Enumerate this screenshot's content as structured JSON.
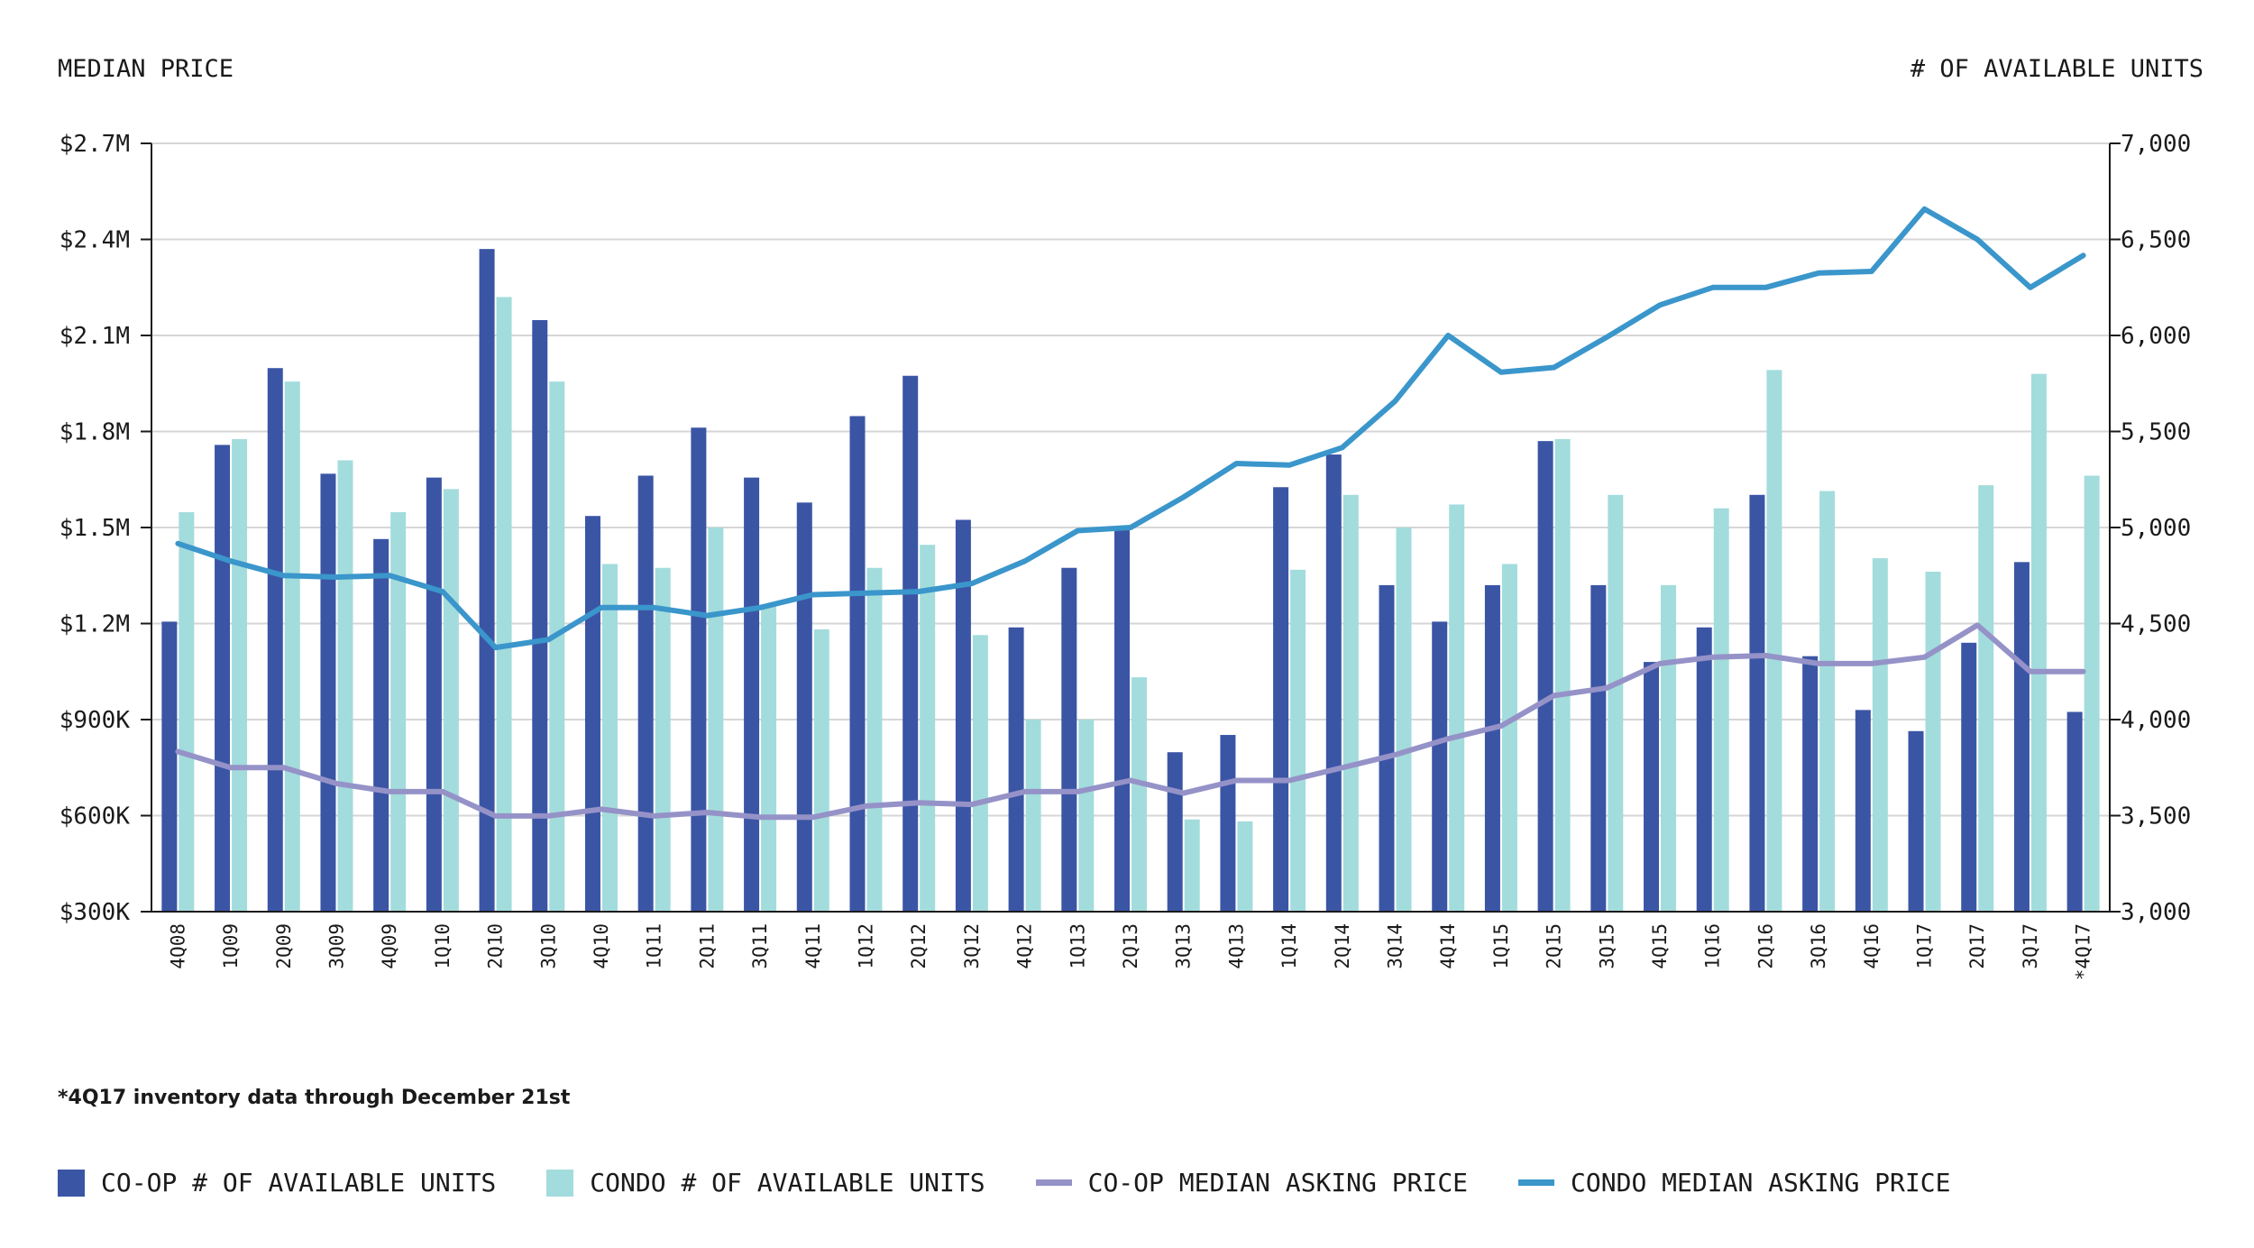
{
  "colors": {
    "coop_bar": "#3b55a5",
    "condo_bar": "#a3dcdc",
    "coop_line": "#9592c8",
    "condo_line": "#3a96cb"
  },
  "footnote": "*4Q17 inventory data through December 21st",
  "legend": [
    {
      "label": "CO-OP # OF AVAILABLE UNITS",
      "kind": "bar",
      "color": "#3b55a5"
    },
    {
      "label": "CONDO # OF AVAILABLE UNITS",
      "kind": "bar",
      "color": "#a3dcdc"
    },
    {
      "label": "CO-OP MEDIAN ASKING PRICE",
      "kind": "line",
      "color": "#9592c8"
    },
    {
      "label": "CONDO MEDIAN ASKING PRICE",
      "kind": "line",
      "color": "#3a96cb"
    }
  ],
  "chart_data": {
    "type": "bar",
    "left_axis_title": "MEDIAN PRICE",
    "right_axis_title": "# OF AVAILABLE UNITS",
    "left_ylim": [
      300000,
      2700000
    ],
    "right_ylim": [
      3000,
      7000
    ],
    "left_ticks": [
      "$300K",
      "$600K",
      "$900K",
      "$1.2M",
      "$1.5M",
      "$1.8M",
      "$2.1M",
      "$2.4M",
      "$2.7M"
    ],
    "right_ticks": [
      "3,000",
      "3,500",
      "4,000",
      "4,500",
      "5,000",
      "5,500",
      "6,000",
      "6,500",
      "7,000"
    ],
    "grid": true,
    "legend_position": "bottom",
    "categories": [
      "4Q08",
      "1Q09",
      "2Q09",
      "3Q09",
      "4Q09",
      "1Q10",
      "2Q10",
      "3Q10",
      "4Q10",
      "1Q11",
      "2Q11",
      "3Q11",
      "4Q11",
      "1Q12",
      "2Q12",
      "3Q12",
      "4Q12",
      "1Q13",
      "2Q13",
      "3Q13",
      "4Q13",
      "1Q14",
      "2Q14",
      "3Q14",
      "4Q14",
      "1Q15",
      "2Q15",
      "3Q15",
      "4Q15",
      "1Q16",
      "2Q16",
      "3Q16",
      "4Q16",
      "1Q17",
      "2Q17",
      "3Q17",
      "*4Q17"
    ],
    "series": [
      {
        "name": "CO-OP # OF AVAILABLE UNITS",
        "kind": "bar",
        "axis": "right",
        "values": [
          4510,
          5430,
          5830,
          5280,
          4940,
          5260,
          6450,
          6080,
          5060,
          5270,
          5520,
          5260,
          5130,
          5580,
          5790,
          5040,
          4480,
          4790,
          4990,
          3830,
          3920,
          5210,
          5380,
          4700,
          4510,
          4700,
          5450,
          4700,
          4300,
          4480,
          5170,
          4330,
          4050,
          3940,
          4400,
          4820,
          4040
        ]
      },
      {
        "name": "CONDO # OF AVAILABLE UNITS",
        "kind": "bar",
        "axis": "right",
        "values": [
          5080,
          5460,
          5760,
          5350,
          5080,
          5200,
          6200,
          5760,
          4810,
          4790,
          5000,
          4600,
          4470,
          4790,
          4910,
          4440,
          4000,
          4000,
          4220,
          3480,
          3470,
          4780,
          5170,
          5000,
          5120,
          4810,
          5460,
          5170,
          4700,
          5100,
          5820,
          5190,
          4840,
          4770,
          5220,
          5800,
          5270
        ]
      },
      {
        "name": "CO-OP MEDIAN ASKING PRICE",
        "kind": "line",
        "axis": "left",
        "values": [
          800000,
          750000,
          750000,
          700000,
          675000,
          675000,
          599000,
          599000,
          620000,
          599000,
          610000,
          595000,
          595000,
          630000,
          640000,
          635000,
          675000,
          675000,
          710000,
          670000,
          710000,
          710000,
          750000,
          790000,
          840000,
          880000,
          975000,
          999000,
          1075000,
          1095000,
          1100000,
          1075000,
          1075000,
          1095000,
          1195000,
          1050000,
          1050000
        ]
      },
      {
        "name": "CONDO MEDIAN ASKING PRICE",
        "kind": "line",
        "axis": "left",
        "values": [
          1450000,
          1395000,
          1350000,
          1345000,
          1350000,
          1300000,
          1125000,
          1150000,
          1250000,
          1250000,
          1225000,
          1250000,
          1290000,
          1295000,
          1300000,
          1325000,
          1395000,
          1490000,
          1500000,
          1595000,
          1700000,
          1695000,
          1750000,
          1895000,
          2100000,
          1985000,
          2000000,
          2095000,
          2195000,
          2250000,
          2250000,
          2295000,
          2300000,
          2495000,
          2400000,
          2250000,
          2350000
        ]
      }
    ]
  }
}
